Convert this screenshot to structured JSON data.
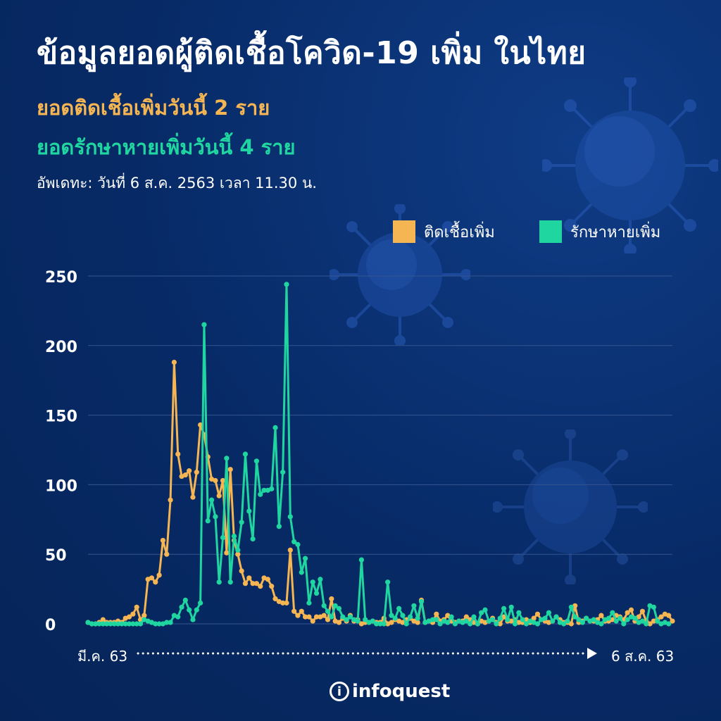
{
  "title": "ข้อมูลยอดผู้ติดเชื้อโควิด-19 เพิ่ม ในไทย",
  "subtitle_infected": "ยอดติดเชื้อเพิ่มวันนี้ 2 ราย",
  "subtitle_recovered": "ยอดรักษาหายเพิ่มวันนี้ 4 ราย",
  "updated": "อัพเดทะ: วันที่ 6 ส.ค. 2563 เวลา 11.30 น.",
  "logo_text": "infoquest",
  "colors": {
    "background": "#072a66",
    "infected": "#f5b553",
    "recovered": "#1fd6a0",
    "grid": "#35558f"
  },
  "chart_data": {
    "type": "line",
    "xlabel_start": "มี.ค. 63",
    "xlabel_end": "6 ส.ค. 63",
    "ylim": [
      0,
      250
    ],
    "y_ticks": [
      0,
      50,
      100,
      150,
      200,
      250
    ],
    "grid": true,
    "legend_position": "top-right",
    "series": [
      {
        "name": "ติดเชื้อเพิ่ม",
        "color": "#f5b553",
        "values": [
          1,
          0,
          0,
          1,
          3,
          1,
          1,
          1,
          2,
          1,
          4,
          5,
          7,
          12,
          3,
          6,
          32,
          33,
          30,
          35,
          60,
          50,
          89,
          188,
          122,
          106,
          107,
          110,
          91,
          109,
          143,
          136,
          120,
          104,
          103,
          92,
          103,
          51,
          111,
          60,
          50,
          38,
          29,
          33,
          29,
          29,
          27,
          33,
          32,
          27,
          18,
          16,
          15,
          15,
          53,
          9,
          6,
          9,
          5,
          5,
          2,
          5,
          5,
          6,
          3,
          18,
          2,
          1,
          4,
          2,
          6,
          2,
          3,
          0,
          1,
          1,
          2,
          1,
          1,
          4,
          0,
          1,
          3,
          2,
          1,
          3,
          4,
          2,
          1,
          17,
          1,
          2,
          1,
          7,
          2,
          3,
          6,
          2,
          1,
          2,
          2,
          5,
          3,
          1,
          0,
          2,
          1,
          2,
          4,
          1,
          0,
          5,
          2,
          2,
          3,
          1,
          1,
          3,
          1,
          4,
          7,
          3,
          2,
          1,
          2,
          5,
          3,
          1,
          1,
          0,
          13,
          1,
          2,
          4,
          2,
          2,
          3,
          6,
          2,
          2,
          3,
          6,
          5,
          3,
          8,
          10,
          2,
          5,
          9,
          2,
          0,
          2,
          3,
          5,
          7,
          6,
          2
        ],
        "x": [
          1,
          2,
          3,
          4,
          5,
          6,
          7,
          8,
          9,
          10,
          11,
          12,
          13,
          14,
          15,
          16,
          17,
          18,
          19,
          20,
          21,
          22,
          23,
          24,
          25,
          26,
          27,
          28,
          29,
          30,
          31,
          32,
          33,
          34,
          35,
          36,
          37,
          38,
          39,
          40,
          41,
          42,
          43,
          44,
          45,
          46,
          47,
          48,
          49,
          50,
          51,
          52,
          53,
          54,
          55,
          56,
          57,
          58,
          59,
          60,
          61,
          62,
          63,
          64,
          65,
          66,
          67,
          68,
          69,
          70,
          71,
          72,
          73,
          74,
          75,
          76,
          77,
          78,
          79,
          80,
          81,
          82,
          83,
          84,
          85,
          86,
          87,
          88,
          89,
          90,
          91,
          92,
          93,
          94,
          95,
          96,
          97,
          98,
          99,
          100,
          101,
          102,
          103,
          104,
          105,
          106,
          107,
          108,
          109,
          110,
          111,
          112,
          113,
          114,
          115,
          116,
          117,
          118,
          119,
          120,
          121,
          122,
          123,
          124,
          125,
          126,
          127,
          128,
          129,
          130,
          131,
          132,
          133,
          134,
          135,
          136,
          137,
          138,
          139,
          140,
          141,
          142,
          143,
          144,
          145,
          146,
          147,
          148,
          149,
          150,
          151,
          152,
          153,
          154,
          155,
          156,
          157
        ]
      },
      {
        "name": "รักษาหายเพิ่ม",
        "color": "#1fd6a0",
        "values": [
          1,
          0,
          0,
          0,
          0,
          0,
          0,
          0,
          0,
          0,
          0,
          0,
          0,
          0,
          0,
          3,
          2,
          1,
          0,
          0,
          0,
          1,
          1,
          6,
          5,
          12,
          17,
          10,
          3,
          10,
          15,
          215,
          74,
          89,
          77,
          30,
          62,
          119,
          30,
          63,
          53,
          73,
          122,
          81,
          61,
          117,
          93,
          96,
          96,
          97,
          141,
          70,
          109,
          244,
          77,
          59,
          57,
          37,
          47,
          15,
          30,
          22,
          32,
          13,
          9,
          5,
          13,
          11,
          5,
          3,
          5,
          3,
          2,
          46,
          3,
          1,
          2,
          0,
          0,
          0,
          30,
          6,
          4,
          11,
          6,
          0,
          5,
          13,
          4,
          16,
          1,
          2,
          3,
          3,
          0,
          2,
          1,
          5,
          0,
          2,
          1,
          2,
          0,
          5,
          0,
          8,
          10,
          2,
          3,
          0,
          4,
          11,
          3,
          12,
          0,
          8,
          3,
          0,
          2,
          1,
          0,
          3,
          4,
          8,
          2,
          5,
          1,
          0,
          2,
          12,
          5,
          3,
          1,
          4,
          2,
          3,
          1,
          0,
          3,
          4,
          8,
          2,
          4,
          0,
          3,
          5,
          4,
          1,
          2,
          0,
          13,
          12,
          2,
          0,
          1,
          0
        ],
        "x": [
          1,
          2,
          3,
          4,
          5,
          6,
          7,
          8,
          9,
          10,
          11,
          12,
          13,
          14,
          15,
          16,
          17,
          18,
          19,
          20,
          21,
          22,
          23,
          24,
          25,
          26,
          27,
          28,
          29,
          30,
          31,
          32,
          33,
          34,
          35,
          36,
          37,
          38,
          39,
          40,
          41,
          42,
          43,
          44,
          45,
          46,
          47,
          48,
          49,
          50,
          51,
          52,
          53,
          54,
          55,
          56,
          57,
          58,
          59,
          60,
          61,
          62,
          63,
          64,
          65,
          66,
          67,
          68,
          69,
          70,
          71,
          72,
          73,
          74,
          75,
          76,
          77,
          78,
          79,
          80,
          81,
          82,
          83,
          84,
          85,
          86,
          87,
          88,
          89,
          90,
          91,
          92,
          93,
          94,
          95,
          96,
          97,
          98,
          99,
          100,
          101,
          102,
          103,
          104,
          105,
          106,
          107,
          108,
          109,
          110,
          111,
          112,
          113,
          114,
          115,
          116,
          117,
          118,
          119,
          120,
          121,
          122,
          123,
          124,
          125,
          126,
          127,
          128,
          129,
          130,
          131,
          132,
          133,
          134,
          135,
          136,
          137,
          138,
          139,
          140,
          141,
          142,
          143,
          144,
          145,
          146,
          147,
          148,
          149,
          150,
          151,
          152,
          153,
          154,
          155,
          156
        ]
      }
    ]
  }
}
